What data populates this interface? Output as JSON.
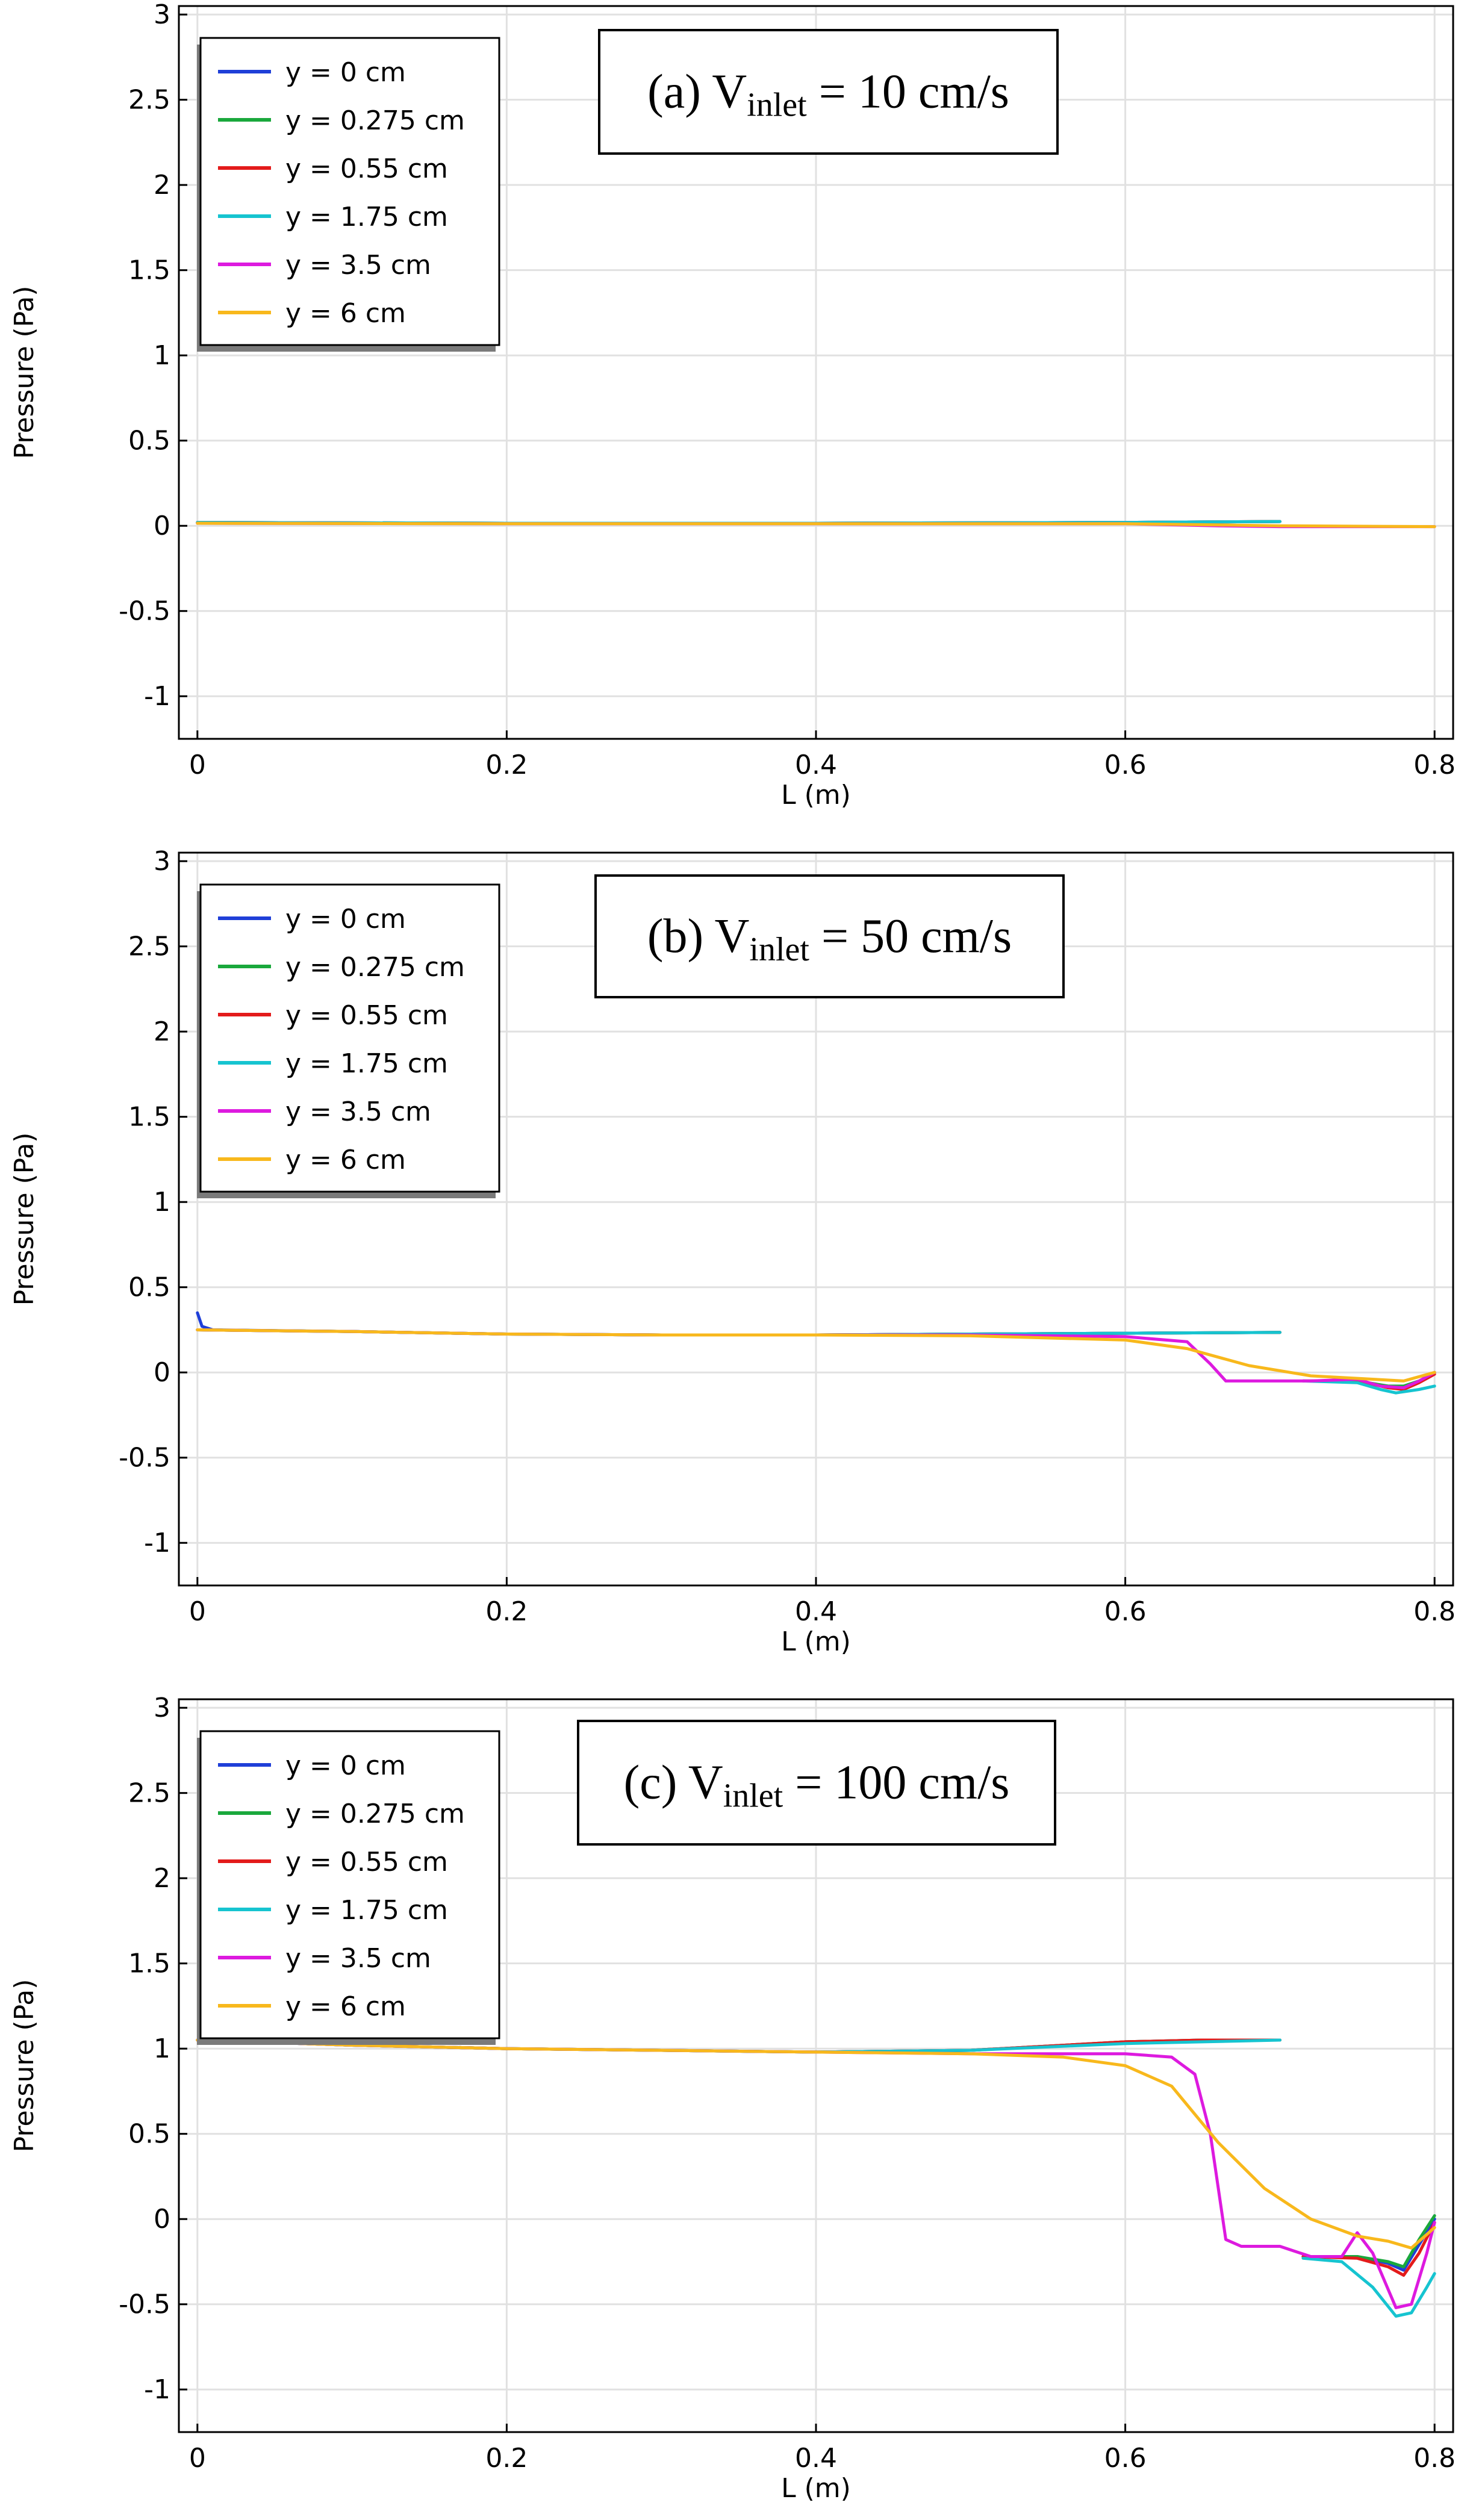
{
  "chart_data": [
    {
      "type": "line",
      "panel_label": "(a) V",
      "panel_sub": "inlet",
      "panel_value": " = 10 cm/s",
      "xlabel": "L (m)",
      "ylabel": "Pressure (Pa)",
      "xlim": [
        -0.012,
        0.812
      ],
      "ylim": [
        -1.25,
        3.05
      ],
      "xticks": [
        "0",
        "0.2",
        "0.4",
        "0.6",
        "0.8"
      ],
      "yticks": [
        "3",
        "2.5",
        "2",
        "1.5",
        "1",
        "0.5",
        "0",
        "-0.5",
        "-1"
      ],
      "grid": true,
      "legend_position": "top-left",
      "series": [
        {
          "name": "y = 0 cm",
          "color": "#1f3fd8",
          "points": [
            [
              0,
              0.02
            ],
            [
              0.2,
              0.015
            ],
            [
              0.4,
              0.015
            ],
            [
              0.6,
              0.02
            ],
            [
              0.7,
              0.025
            ]
          ]
        },
        {
          "name": "y = 0.275 cm",
          "color": "#1aa83c",
          "points": [
            [
              0,
              0.02
            ],
            [
              0.2,
              0.015
            ],
            [
              0.4,
              0.015
            ],
            [
              0.6,
              0.02
            ],
            [
              0.7,
              0.025
            ]
          ]
        },
        {
          "name": "y = 0.55 cm",
          "color": "#e31b1b",
          "points": [
            [
              0,
              0.02
            ],
            [
              0.2,
              0.015
            ],
            [
              0.4,
              0.015
            ],
            [
              0.6,
              0.02
            ],
            [
              0.7,
              0.025
            ]
          ]
        },
        {
          "name": "y = 1.75 cm",
          "color": "#16c4d0",
          "points": [
            [
              0,
              0.02
            ],
            [
              0.2,
              0.015
            ],
            [
              0.4,
              0.015
            ],
            [
              0.6,
              0.02
            ],
            [
              0.7,
              0.025
            ]
          ]
        },
        {
          "name": "y = 3.5 cm",
          "color": "#dd1adf",
          "points": [
            [
              0,
              0.015
            ],
            [
              0.2,
              0.012
            ],
            [
              0.4,
              0.012
            ],
            [
              0.6,
              0.012
            ],
            [
              0.66,
              0.0
            ],
            [
              0.7,
              -0.005
            ],
            [
              0.8,
              -0.005
            ]
          ]
        },
        {
          "name": "y = 6 cm",
          "color": "#f8b81c",
          "points": [
            [
              0,
              0.015
            ],
            [
              0.2,
              0.012
            ],
            [
              0.4,
              0.012
            ],
            [
              0.6,
              0.012
            ],
            [
              0.66,
              0.005
            ],
            [
              0.7,
              0.0
            ],
            [
              0.8,
              -0.005
            ]
          ]
        }
      ]
    },
    {
      "type": "line",
      "panel_label": "(b) V",
      "panel_sub": "inlet",
      "panel_value": " = 50 cm/s",
      "xlabel": "L (m)",
      "ylabel": "Pressure (Pa)",
      "xlim": [
        -0.012,
        0.812
      ],
      "ylim": [
        -1.25,
        3.05
      ],
      "xticks": [
        "0",
        "0.2",
        "0.4",
        "0.6",
        "0.8"
      ],
      "yticks": [
        "3",
        "2.5",
        "2",
        "1.5",
        "1",
        "0.5",
        "0",
        "-0.5",
        "-1"
      ],
      "grid": true,
      "legend_position": "top-left",
      "series": [
        {
          "name": "y = 0 cm",
          "color": "#1f3fd8",
          "points": [
            [
              0,
              0.35
            ],
            [
              0.003,
              0.27
            ],
            [
              0.01,
              0.25
            ],
            [
              0.1,
              0.24
            ],
            [
              0.2,
              0.225
            ],
            [
              0.3,
              0.22
            ],
            [
              0.4,
              0.22
            ],
            [
              0.5,
              0.225
            ],
            [
              0.6,
              0.23
            ],
            [
              0.7,
              0.235
            ]
          ]
        },
        {
          "name": "y = 0.275 cm",
          "color": "#1aa83c",
          "points": [
            [
              0,
              0.25
            ],
            [
              0.1,
              0.24
            ],
            [
              0.2,
              0.225
            ],
            [
              0.3,
              0.22
            ],
            [
              0.4,
              0.22
            ],
            [
              0.5,
              0.225
            ],
            [
              0.6,
              0.23
            ],
            [
              0.7,
              0.235
            ],
            null,
            [
              0.715,
              -0.05
            ],
            [
              0.75,
              -0.05
            ],
            [
              0.77,
              -0.08
            ],
            [
              0.78,
              -0.08
            ],
            [
              0.79,
              -0.05
            ],
            [
              0.8,
              0.0
            ]
          ]
        },
        {
          "name": "y = 0.55 cm",
          "color": "#e31b1b",
          "points": [
            [
              0,
              0.25
            ],
            [
              0.1,
              0.24
            ],
            [
              0.2,
              0.225
            ],
            [
              0.3,
              0.22
            ],
            [
              0.4,
              0.22
            ],
            [
              0.5,
              0.225
            ],
            [
              0.6,
              0.23
            ],
            [
              0.7,
              0.235
            ],
            null,
            [
              0.715,
              -0.05
            ],
            [
              0.75,
              -0.05
            ],
            [
              0.77,
              -0.09
            ],
            [
              0.78,
              -0.1
            ],
            [
              0.79,
              -0.06
            ],
            [
              0.8,
              -0.01
            ]
          ]
        },
        {
          "name": "y = 1.75 cm",
          "color": "#16c4d0",
          "points": [
            [
              0,
              0.25
            ],
            [
              0.1,
              0.24
            ],
            [
              0.2,
              0.225
            ],
            [
              0.3,
              0.22
            ],
            [
              0.4,
              0.22
            ],
            [
              0.5,
              0.225
            ],
            [
              0.6,
              0.23
            ],
            [
              0.7,
              0.235
            ],
            null,
            [
              0.715,
              -0.05
            ],
            [
              0.75,
              -0.06
            ],
            [
              0.765,
              -0.1
            ],
            [
              0.775,
              -0.12
            ],
            [
              0.79,
              -0.1
            ],
            [
              0.8,
              -0.08
            ]
          ]
        },
        {
          "name": "y = 3.5 cm",
          "color": "#dd1adf",
          "points": [
            [
              0,
              0.25
            ],
            [
              0.1,
              0.24
            ],
            [
              0.2,
              0.225
            ],
            [
              0.3,
              0.22
            ],
            [
              0.4,
              0.22
            ],
            [
              0.5,
              0.22
            ],
            [
              0.6,
              0.21
            ],
            [
              0.64,
              0.18
            ],
            [
              0.655,
              0.05
            ],
            [
              0.665,
              -0.05
            ],
            [
              0.68,
              -0.05
            ],
            [
              0.72,
              -0.05
            ],
            [
              0.75,
              -0.04
            ],
            [
              0.765,
              -0.08
            ],
            [
              0.78,
              -0.09
            ],
            [
              0.79,
              -0.05
            ],
            [
              0.8,
              0.0
            ]
          ]
        },
        {
          "name": "y = 6 cm",
          "color": "#f8b81c",
          "points": [
            [
              0,
              0.25
            ],
            [
              0.1,
              0.24
            ],
            [
              0.2,
              0.225
            ],
            [
              0.3,
              0.22
            ],
            [
              0.4,
              0.22
            ],
            [
              0.5,
              0.215
            ],
            [
              0.6,
              0.19
            ],
            [
              0.64,
              0.14
            ],
            [
              0.68,
              0.04
            ],
            [
              0.72,
              -0.02
            ],
            [
              0.76,
              -0.04
            ],
            [
              0.78,
              -0.05
            ],
            [
              0.8,
              0.0
            ]
          ]
        }
      ]
    },
    {
      "type": "line",
      "panel_label": "(c) V",
      "panel_sub": "inlet",
      "panel_value": " = 100 cm/s",
      "xlabel": "L (m)",
      "ylabel": "Pressure (Pa)",
      "xlim": [
        -0.012,
        0.812
      ],
      "ylim": [
        -1.25,
        3.05
      ],
      "xticks": [
        "0",
        "0.2",
        "0.4",
        "0.6",
        "0.8"
      ],
      "yticks": [
        "3",
        "2.5",
        "2",
        "1.5",
        "1",
        "0.5",
        "0",
        "-0.5",
        "-1"
      ],
      "grid": true,
      "legend_position": "top-left",
      "series": [
        {
          "name": "y = 0 cm",
          "color": "#1f3fd8",
          "points": [
            [
              0,
              1.05
            ],
            [
              0.1,
              1.02
            ],
            [
              0.2,
              1.0
            ],
            [
              0.3,
              0.99
            ],
            [
              0.4,
              0.98
            ],
            [
              0.5,
              0.99
            ],
            [
              0.6,
              1.04
            ],
            [
              0.65,
              1.05
            ],
            [
              0.7,
              1.05
            ],
            null,
            [
              0.715,
              -0.22
            ],
            [
              0.75,
              -0.22
            ],
            [
              0.77,
              -0.26
            ],
            [
              0.78,
              -0.3
            ],
            [
              0.79,
              -0.15
            ],
            [
              0.8,
              0.0
            ]
          ]
        },
        {
          "name": "y = 0.275 cm",
          "color": "#1aa83c",
          "points": [
            [
              0,
              1.05
            ],
            [
              0.1,
              1.02
            ],
            [
              0.2,
              1.0
            ],
            [
              0.3,
              0.99
            ],
            [
              0.4,
              0.98
            ],
            [
              0.5,
              0.99
            ],
            [
              0.6,
              1.04
            ],
            [
              0.65,
              1.05
            ],
            [
              0.7,
              1.05
            ],
            null,
            [
              0.715,
              -0.22
            ],
            [
              0.75,
              -0.22
            ],
            [
              0.77,
              -0.25
            ],
            [
              0.78,
              -0.28
            ],
            [
              0.79,
              -0.12
            ],
            [
              0.8,
              0.02
            ]
          ]
        },
        {
          "name": "y = 0.55 cm",
          "color": "#e31b1b",
          "points": [
            [
              0,
              1.05
            ],
            [
              0.1,
              1.02
            ],
            [
              0.2,
              1.0
            ],
            [
              0.3,
              0.99
            ],
            [
              0.4,
              0.98
            ],
            [
              0.5,
              0.99
            ],
            [
              0.6,
              1.04
            ],
            [
              0.65,
              1.05
            ],
            [
              0.7,
              1.05
            ],
            null,
            [
              0.715,
              -0.22
            ],
            [
              0.75,
              -0.23
            ],
            [
              0.77,
              -0.28
            ],
            [
              0.78,
              -0.33
            ],
            [
              0.79,
              -0.2
            ],
            [
              0.8,
              -0.02
            ]
          ]
        },
        {
          "name": "y = 1.75 cm",
          "color": "#16c4d0",
          "points": [
            [
              0,
              1.05
            ],
            [
              0.1,
              1.02
            ],
            [
              0.2,
              1.0
            ],
            [
              0.3,
              0.99
            ],
            [
              0.4,
              0.98
            ],
            [
              0.5,
              0.99
            ],
            [
              0.6,
              1.03
            ],
            [
              0.65,
              1.04
            ],
            [
              0.7,
              1.05
            ],
            null,
            [
              0.715,
              -0.23
            ],
            [
              0.74,
              -0.25
            ],
            [
              0.76,
              -0.4
            ],
            [
              0.775,
              -0.57
            ],
            [
              0.785,
              -0.55
            ],
            [
              0.795,
              -0.4
            ],
            [
              0.8,
              -0.32
            ]
          ]
        },
        {
          "name": "y = 3.5 cm",
          "color": "#dd1adf",
          "points": [
            [
              0,
              1.05
            ],
            [
              0.1,
              1.02
            ],
            [
              0.2,
              1.0
            ],
            [
              0.3,
              0.99
            ],
            [
              0.4,
              0.98
            ],
            [
              0.5,
              0.97
            ],
            [
              0.6,
              0.97
            ],
            [
              0.63,
              0.95
            ],
            [
              0.645,
              0.85
            ],
            [
              0.655,
              0.5
            ],
            [
              0.665,
              -0.12
            ],
            [
              0.675,
              -0.16
            ],
            [
              0.7,
              -0.16
            ],
            [
              0.72,
              -0.22
            ],
            [
              0.74,
              -0.22
            ],
            [
              0.75,
              -0.08
            ],
            [
              0.76,
              -0.2
            ],
            [
              0.775,
              -0.52
            ],
            [
              0.785,
              -0.5
            ],
            [
              0.795,
              -0.2
            ],
            [
              0.8,
              -0.02
            ]
          ]
        },
        {
          "name": "y = 6 cm",
          "color": "#f8b81c",
          "points": [
            [
              0,
              1.05
            ],
            [
              0.1,
              1.02
            ],
            [
              0.2,
              1.0
            ],
            [
              0.3,
              0.99
            ],
            [
              0.4,
              0.98
            ],
            [
              0.5,
              0.97
            ],
            [
              0.56,
              0.95
            ],
            [
              0.6,
              0.9
            ],
            [
              0.63,
              0.78
            ],
            [
              0.66,
              0.45
            ],
            [
              0.69,
              0.18
            ],
            [
              0.72,
              0.0
            ],
            [
              0.75,
              -0.1
            ],
            [
              0.77,
              -0.13
            ],
            [
              0.785,
              -0.17
            ],
            [
              0.8,
              -0.05
            ]
          ]
        }
      ]
    }
  ]
}
